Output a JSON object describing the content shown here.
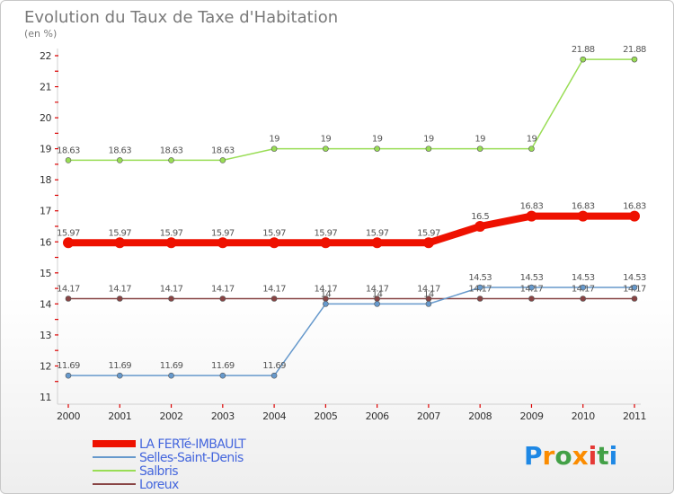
{
  "chart_data": {
    "type": "line",
    "title": "Evolution du Taux de Taxe d'Habitation",
    "subtitle": "(en %)",
    "x": [
      "2000",
      "2001",
      "2002",
      "2003",
      "2004",
      "2005",
      "2006",
      "2007",
      "2008",
      "2009",
      "2010",
      "2011"
    ],
    "ylim": [
      11,
      22
    ],
    "yticks": [
      11,
      12,
      13,
      14,
      15,
      16,
      17,
      18,
      19,
      20,
      21,
      22
    ],
    "grid": false,
    "legend_position": "bottom-left",
    "series": [
      {
        "name": "LA FERTé-IMBAULT",
        "color": "#ee1100",
        "values": [
          15.97,
          15.97,
          15.97,
          15.97,
          15.97,
          15.97,
          15.97,
          15.97,
          16.5,
          16.83,
          16.83,
          16.83
        ],
        "labels": [
          "15.97",
          "15.97",
          "15.97",
          "15.97",
          "15.97",
          "15.97",
          "15.97",
          "15.97",
          "16.5",
          "16.83",
          "16.83",
          "16.83"
        ]
      },
      {
        "name": "Selles-Saint-Denis",
        "color": "#6699cc",
        "values": [
          11.69,
          11.69,
          11.69,
          11.69,
          11.69,
          14,
          14,
          14,
          14.53,
          14.53,
          14.53,
          14.53
        ],
        "labels": [
          "11.69",
          "11.69",
          "11.69",
          "11.69",
          "11.69",
          "14",
          "14",
          "14",
          "14.53",
          "14.53",
          "14.53",
          "14.53"
        ]
      },
      {
        "name": "Salbris",
        "color": "#99dd55",
        "values": [
          18.63,
          18.63,
          18.63,
          18.63,
          19,
          19,
          19,
          19,
          19,
          19,
          21.88,
          21.88
        ],
        "labels": [
          "18.63",
          "18.63",
          "18.63",
          "18.63",
          "19",
          "19",
          "19",
          "19",
          "19",
          "19",
          "21.88",
          "21.88"
        ]
      },
      {
        "name": "Loreux",
        "color": "#884444",
        "values": [
          14.17,
          14.17,
          14.17,
          14.17,
          14.17,
          14.17,
          14.17,
          14.17,
          14.17,
          14.17,
          14.17,
          14.17
        ],
        "labels": [
          "14.17",
          "14.17",
          "14.17",
          "14.17",
          "14.17",
          "14.17",
          "14.17",
          "14.17",
          "14.17",
          "14.17",
          "14.17",
          "14.17"
        ]
      }
    ]
  },
  "logo": {
    "text": "Proxiti",
    "letters": [
      "P",
      "r",
      "o",
      "x",
      "i",
      "t",
      "i"
    ],
    "colors": [
      "#1e88e5",
      "#fb8c00",
      "#43a047",
      "#fb8c00",
      "#e53935",
      "#43a047",
      "#1e88e5"
    ]
  }
}
